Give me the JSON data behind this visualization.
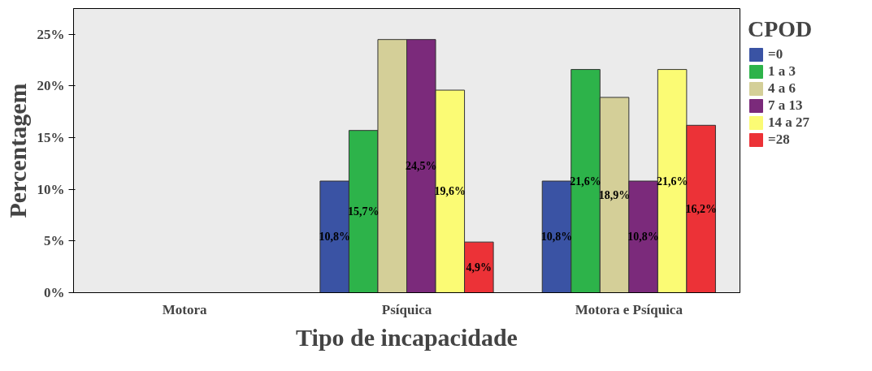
{
  "chart_data": {
    "type": "bar",
    "xlabel": "Tipo de incapacidade",
    "ylabel": "Percentagem",
    "legend_title": "CPOD",
    "legend": "right",
    "categories": [
      "Motora",
      "Psíquica",
      "Motora e Psíquica"
    ],
    "ylim": [
      0,
      27.5
    ],
    "yticks": [
      {
        "value": 0,
        "label": "0%"
      },
      {
        "value": 5,
        "label": "5%"
      },
      {
        "value": 10,
        "label": "10%"
      },
      {
        "value": 15,
        "label": "15%"
      },
      {
        "value": 20,
        "label": "20%"
      },
      {
        "value": 25,
        "label": "25%"
      }
    ],
    "grid": false,
    "series": [
      {
        "name": "=0",
        "color": "#3a53a4",
        "values": [
          0,
          10.8,
          10.8
        ],
        "value_labels": [
          null,
          "10,8%",
          "10,8%"
        ]
      },
      {
        "name": "1 a 3",
        "color": "#2db34a",
        "values": [
          0,
          15.7,
          21.6
        ],
        "value_labels": [
          null,
          "15,7%",
          "21,6%"
        ]
      },
      {
        "name": "4 a 6",
        "color": "#d4cf98",
        "values": [
          0,
          24.5,
          18.9
        ],
        "value_labels": [
          null,
          null,
          "18,9%"
        ]
      },
      {
        "name": "7 a 13",
        "color": "#7b2a7b",
        "values": [
          0,
          24.5,
          10.8
        ],
        "value_labels": [
          null,
          "24,5%",
          "10,8%"
        ]
      },
      {
        "name": "14 a 27",
        "color": "#fbfb74",
        "values": [
          0,
          19.6,
          21.6
        ],
        "value_labels": [
          null,
          "19,6%",
          "21,6%"
        ]
      },
      {
        "name": "=28",
        "color": "#ec3237",
        "values": [
          0,
          4.9,
          16.2
        ],
        "value_labels": [
          null,
          "4,9%",
          "16,2%"
        ]
      }
    ]
  }
}
